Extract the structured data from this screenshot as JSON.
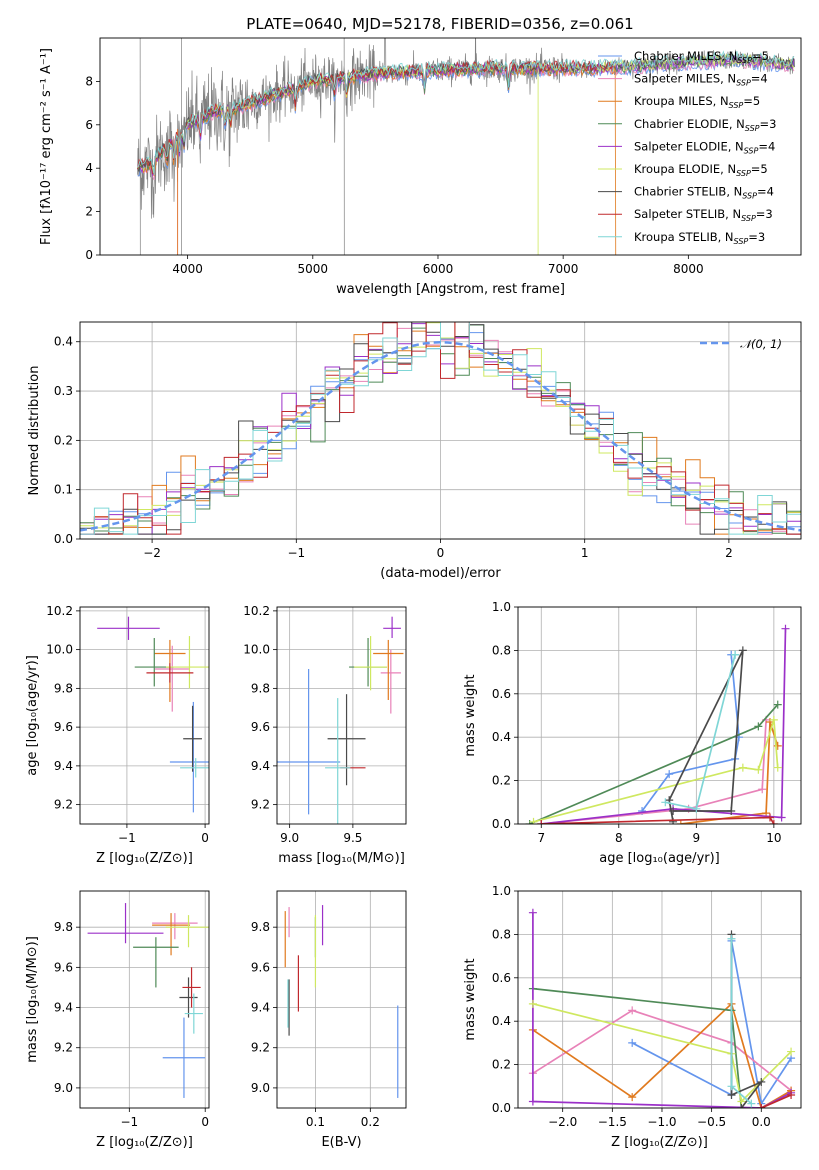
{
  "page": {
    "title": "PLATE=0640, MJD=52178, FIBERID=0356, z=0.061"
  },
  "colors": {
    "data_spectrum": "#808080",
    "gaussian": "#6495ed",
    "grid": "#b0b0b0"
  },
  "models": [
    {
      "name": "Chabrier MILES",
      "nssp": 5,
      "color": "#6495ed"
    },
    {
      "name": "Salpeter MILES",
      "nssp": 4,
      "color": "#e882b8"
    },
    {
      "name": "Kroupa MILES",
      "nssp": 5,
      "color": "#e07a1f"
    },
    {
      "name": "Chabrier ELODIE",
      "nssp": 3,
      "color": "#4f8a57"
    },
    {
      "name": "Salpeter ELODIE",
      "nssp": 4,
      "color": "#9b30c8"
    },
    {
      "name": "Kroupa ELODIE",
      "nssp": 5,
      "color": "#cfe860"
    },
    {
      "name": "Chabrier STELIB",
      "nssp": 4,
      "color": "#4a4a4a"
    },
    {
      "name": "Salpeter STELIB",
      "nssp": 3,
      "color": "#c0282d"
    },
    {
      "name": "Kroupa STELIB",
      "nssp": 3,
      "color": "#7fd6d6"
    }
  ],
  "chart_data": [
    {
      "id": "spectrum",
      "type": "line",
      "title": "PLATE=0640, MJD=52178, FIBERID=0356, z=0.061",
      "xlabel": "wavelength [Angstrom, rest frame]",
      "ylabel": "Flux [fλ10⁻¹⁷ erg cm⁻² s⁻¹ A⁻¹]",
      "xlim": [
        3300,
        8900
      ],
      "ylim": [
        0,
        10
      ],
      "xticks": [
        4000,
        5000,
        6000,
        7000,
        8000
      ],
      "yticks": [
        0,
        2,
        4,
        6,
        8
      ],
      "grid": false,
      "legend_placement": "right",
      "continuum": {
        "x": [
          3600,
          3700,
          3800,
          3900,
          4000,
          4200,
          4400,
          4600,
          4800,
          5000,
          5300,
          5600,
          6000,
          6400,
          6800,
          7200,
          7600,
          8000,
          8400,
          8800
        ],
        "y": [
          4.0,
          4.2,
          4.8,
          5.3,
          6.0,
          6.6,
          6.8,
          7.2,
          7.6,
          8.0,
          8.2,
          8.4,
          8.5,
          8.6,
          8.6,
          8.6,
          8.7,
          8.9,
          9.0,
          8.8
        ]
      }
    },
    {
      "id": "residuals",
      "type": "line",
      "xlabel": "(data-model)/error",
      "ylabel": "Normed distribution",
      "xlim": [
        -2.5,
        2.5
      ],
      "ylim": [
        0,
        0.44
      ],
      "xticks": [
        -2,
        -1,
        0,
        1,
        2
      ],
      "yticks": [
        0.0,
        0.1,
        0.2,
        0.3,
        0.4
      ],
      "grid": true,
      "legend_placement": "top-right",
      "legend": "𝒩(0, 1)"
    },
    {
      "id": "age-vs-Z",
      "type": "scatter",
      "xlabel": "Z [log₁₀(Z/Z⊙)]",
      "ylabel": "age  [log₁₀(age/yr)]",
      "xlim": [
        -1.6,
        0.05
      ],
      "ylim": [
        9.1,
        10.22
      ],
      "xticks": [
        -1,
        0
      ],
      "yticks": [
        9.2,
        9.4,
        9.6,
        9.8,
        10.0,
        10.2
      ],
      "grid": true,
      "points": [
        {
          "x": -0.15,
          "y": 9.42,
          "xerr": 0.3,
          "yerr": [
            0.26,
            0.31
          ],
          "model": 0
        },
        {
          "x": -0.42,
          "y": 9.9,
          "xerr": 0.22,
          "yerr": [
            0.22,
            0.12
          ],
          "model": 1
        },
        {
          "x": -0.45,
          "y": 9.98,
          "xerr": 0.2,
          "yerr": [
            0.25,
            0.07
          ],
          "model": 2
        },
        {
          "x": -0.65,
          "y": 9.91,
          "xerr": 0.25,
          "yerr": [
            0.1,
            0.15
          ],
          "model": 3
        },
        {
          "x": -0.98,
          "y": 10.11,
          "xerr": 0.4,
          "yerr": [
            0.06,
            0.06
          ],
          "model": 4
        },
        {
          "x": -0.2,
          "y": 9.91,
          "xerr": 0.3,
          "yerr": [
            0.11,
            0.16
          ],
          "model": 5
        },
        {
          "x": -0.16,
          "y": 9.54,
          "xerr": 0.12,
          "yerr": [
            0.17,
            0.17
          ],
          "model": 6
        },
        {
          "x": -0.45,
          "y": 9.88,
          "xerr": 0.3,
          "yerr": [
            0.05,
            0.05
          ],
          "model": 7
        },
        {
          "x": -0.12,
          "y": 9.39,
          "xerr": 0.2,
          "yerr": [
            0.05,
            0.05
          ],
          "model": 8
        }
      ]
    },
    {
      "id": "age-vs-mass",
      "type": "scatter",
      "xlabel": "mass [log₁₀(M/M⊙)]",
      "ylabel": "",
      "xlim": [
        8.9,
        9.92
      ],
      "ylim": [
        9.1,
        10.22
      ],
      "xticks": [
        9.0,
        9.5
      ],
      "yticks": [
        9.2,
        9.4,
        9.6,
        9.8,
        10.0,
        10.2
      ],
      "grid": true,
      "points": [
        {
          "x": 9.15,
          "y": 9.42,
          "xerr": 0.25,
          "yerr": [
            0.27,
            0.48
          ],
          "model": 0
        },
        {
          "x": 9.8,
          "y": 9.88,
          "xerr": 0.08,
          "yerr": [
            0.21,
            0.12
          ],
          "model": 1
        },
        {
          "x": 9.78,
          "y": 9.98,
          "xerr": 0.12,
          "yerr": [
            0.24,
            0.07
          ],
          "model": 2
        },
        {
          "x": 9.62,
          "y": 9.91,
          "xerr": 0.15,
          "yerr": [
            0.1,
            0.15
          ],
          "model": 3
        },
        {
          "x": 9.81,
          "y": 10.11,
          "xerr": 0.07,
          "yerr": [
            0.05,
            0.06
          ],
          "model": 4
        },
        {
          "x": 9.64,
          "y": 9.91,
          "xerr": 0.13,
          "yerr": [
            0.12,
            0.16
          ],
          "model": 5
        },
        {
          "x": 9.45,
          "y": 9.54,
          "xerr": 0.15,
          "yerr": [
            0.24,
            0.23
          ],
          "model": 6
        },
        {
          "x": 9.5,
          "y": 9.39,
          "xerr": 0.1,
          "yerr": [
            0.0,
            0.0
          ],
          "model": 7
        },
        {
          "x": 9.38,
          "y": 9.39,
          "xerr": 0.1,
          "yerr": [
            0.29,
            0.36
          ],
          "model": 8
        }
      ]
    },
    {
      "id": "weight-vs-age",
      "type": "line",
      "xlabel": "age  [log₁₀(age/yr)]",
      "ylabel": "mass weight",
      "xlim": [
        6.7,
        10.35
      ],
      "ylim": [
        0,
        1.0
      ],
      "xticks": [
        7,
        8,
        9,
        10
      ],
      "yticks": [
        0.0,
        0.2,
        0.4,
        0.6,
        0.8,
        1.0
      ],
      "grid": true,
      "series": [
        {
          "model": 0,
          "x": [
            8.3,
            8.65,
            9.5,
            9.55,
            9.45
          ],
          "y": [
            0.06,
            0.23,
            0.3,
            0.4,
            0.78
          ]
        },
        {
          "model": 1,
          "x": [
            7.0,
            8.9,
            9.85,
            9.9
          ],
          "y": [
            0.0,
            0.07,
            0.16,
            0.48
          ]
        },
        {
          "model": 2,
          "x": [
            8.8,
            9.9,
            9.95,
            10.05
          ],
          "y": [
            0.0,
            0.05,
            0.47,
            0.36
          ]
        },
        {
          "model": 3,
          "x": [
            6.85,
            9.8,
            10.05
          ],
          "y": [
            0.0,
            0.45,
            0.55
          ]
        },
        {
          "model": 4,
          "x": [
            7.0,
            8.7,
            10.1,
            10.15
          ],
          "y": [
            0.0,
            0.07,
            0.03,
            0.9
          ]
        },
        {
          "model": 5,
          "x": [
            6.9,
            9.6,
            9.8,
            10.0,
            10.05
          ],
          "y": [
            0.01,
            0.26,
            0.25,
            0.48,
            0.26
          ]
        },
        {
          "model": 6,
          "x": [
            8.7,
            9.45,
            9.6,
            8.65,
            8.7
          ],
          "y": [
            0.06,
            0.06,
            0.8,
            0.11,
            0.01
          ]
        },
        {
          "model": 7,
          "x": [
            7.0,
            9.95,
            10.0
          ],
          "y": [
            0.0,
            0.03,
            0.0
          ]
        },
        {
          "model": 8,
          "x": [
            8.6,
            9.0,
            9.5,
            9.5
          ],
          "y": [
            0.1,
            0.07,
            0.78,
            0.78
          ]
        }
      ]
    },
    {
      "id": "mass-vs-Z",
      "type": "scatter",
      "xlabel": "Z [log₁₀(Z/Z⊙)]",
      "ylabel": "mass [log₁₀(M/M⊙)]",
      "xlim": [
        -1.65,
        0.05
      ],
      "ylim": [
        8.9,
        9.98
      ],
      "xticks": [
        -1,
        0
      ],
      "yticks": [
        9.0,
        9.2,
        9.4,
        9.6,
        9.8
      ],
      "grid": true,
      "points": [
        {
          "x": -0.28,
          "y": 9.15,
          "xerr": 0.28,
          "yerr": [
            0.2,
            0.2
          ],
          "model": 0
        },
        {
          "x": -0.4,
          "y": 9.82,
          "xerr": 0.3,
          "yerr": [
            0.08,
            0.05
          ],
          "model": 1
        },
        {
          "x": -0.45,
          "y": 9.81,
          "xerr": 0.25,
          "yerr": [
            0.15,
            0.06
          ],
          "model": 2
        },
        {
          "x": -0.65,
          "y": 9.7,
          "xerr": 0.3,
          "yerr": [
            0.2,
            0.05
          ],
          "model": 3
        },
        {
          "x": -1.05,
          "y": 9.77,
          "xerr": 0.5,
          "yerr": [
            0.05,
            0.15
          ],
          "model": 4
        },
        {
          "x": -0.22,
          "y": 9.8,
          "xerr": 0.3,
          "yerr": [
            0.1,
            0.06
          ],
          "model": 5
        },
        {
          "x": -0.22,
          "y": 9.45,
          "xerr": 0.12,
          "yerr": [
            0.1,
            0.1
          ],
          "model": 6
        },
        {
          "x": -0.18,
          "y": 9.5,
          "xerr": 0.12,
          "yerr": [
            0.1,
            0.1
          ],
          "model": 7
        },
        {
          "x": -0.15,
          "y": 9.37,
          "xerr": 0.12,
          "yerr": [
            0.1,
            0.1
          ],
          "model": 8
        }
      ]
    },
    {
      "id": "mass-vs-EBV",
      "type": "scatter",
      "xlabel": "E(B-V)",
      "ylabel": "",
      "xlim": [
        0.03,
        0.265
      ],
      "ylim": [
        8.9,
        9.98
      ],
      "xticks": [
        0.1,
        0.2
      ],
      "yticks": [
        9.0,
        9.2,
        9.4,
        9.6,
        9.8
      ],
      "grid": true,
      "points": [
        {
          "x": 0.25,
          "y": 9.18,
          "xerr": 0,
          "yerr": [
            0.23,
            0.23
          ],
          "model": 0
        },
        {
          "x": 0.052,
          "y": 9.8,
          "xerr": 0,
          "yerr": [
            0.05,
            0.1
          ],
          "model": 1
        },
        {
          "x": 0.045,
          "y": 9.74,
          "xerr": 0,
          "yerr": [
            0.14,
            0.14
          ],
          "model": 2
        },
        {
          "x": 0.1,
          "y": 9.7,
          "xerr": 0,
          "yerr": [
            0.05,
            0.15
          ],
          "model": 3
        },
        {
          "x": 0.113,
          "y": 9.81,
          "xerr": 0,
          "yerr": [
            0.1,
            0.1
          ],
          "model": 4
        },
        {
          "x": 0.1,
          "y": 9.65,
          "xerr": 0,
          "yerr": [
            0.15,
            0.21
          ],
          "model": 5
        },
        {
          "x": 0.052,
          "y": 9.4,
          "xerr": 0,
          "yerr": [
            0.14,
            0.14
          ],
          "model": 6
        },
        {
          "x": 0.069,
          "y": 9.52,
          "xerr": 0,
          "yerr": [
            0.14,
            0.14
          ],
          "model": 7
        },
        {
          "x": 0.05,
          "y": 9.42,
          "xerr": 0,
          "yerr": [
            0.12,
            0.12
          ],
          "model": 8
        }
      ]
    },
    {
      "id": "weight-vs-Z",
      "type": "line",
      "xlabel": "Z [log₁₀(Z/Z⊙)]",
      "ylabel": "mass weight",
      "xlim": [
        -2.45,
        0.4
      ],
      "ylim": [
        0,
        1.0
      ],
      "xticks": [
        -2.0,
        -1.5,
        -1.0,
        -0.5,
        0.0
      ],
      "yticks": [
        0.0,
        0.2,
        0.4,
        0.6,
        0.8,
        1.0
      ],
      "grid": true,
      "series": [
        {
          "model": 0,
          "x": [
            -1.3,
            -0.3,
            -0.3,
            0.0,
            0.3
          ],
          "y": [
            0.3,
            0.06,
            0.77,
            0.02,
            0.23
          ]
        },
        {
          "model": 1,
          "x": [
            -2.3,
            -1.3,
            -0.3,
            0.3
          ],
          "y": [
            0.16,
            0.45,
            0.3,
            0.08
          ]
        },
        {
          "model": 2,
          "x": [
            -2.3,
            -1.3,
            -0.3,
            0.0,
            0.3
          ],
          "y": [
            0.36,
            0.05,
            0.48,
            0.0,
            0.08
          ]
        },
        {
          "model": 3,
          "x": [
            -2.3,
            -0.3,
            -0.2,
            0.0
          ],
          "y": [
            0.55,
            0.45,
            0.0,
            0.0
          ]
        },
        {
          "model": 4,
          "x": [
            -2.3,
            -2.3,
            0.0,
            0.3
          ],
          "y": [
            0.9,
            0.03,
            0.0,
            0.07
          ]
        },
        {
          "model": 5,
          "x": [
            -2.3,
            -0.3,
            -0.2,
            0.3
          ],
          "y": [
            0.48,
            0.25,
            0.03,
            0.26
          ]
        },
        {
          "model": 6,
          "x": [
            -0.3,
            -0.3,
            0.0,
            -0.2
          ],
          "y": [
            0.8,
            0.06,
            0.12,
            0.0
          ]
        },
        {
          "model": 7,
          "x": [
            0.0,
            0.3
          ],
          "y": [
            0.0,
            0.06
          ]
        },
        {
          "model": 8,
          "x": [
            -0.3,
            -0.3,
            -0.1
          ],
          "y": [
            0.78,
            0.1,
            0.02
          ]
        }
      ]
    }
  ]
}
